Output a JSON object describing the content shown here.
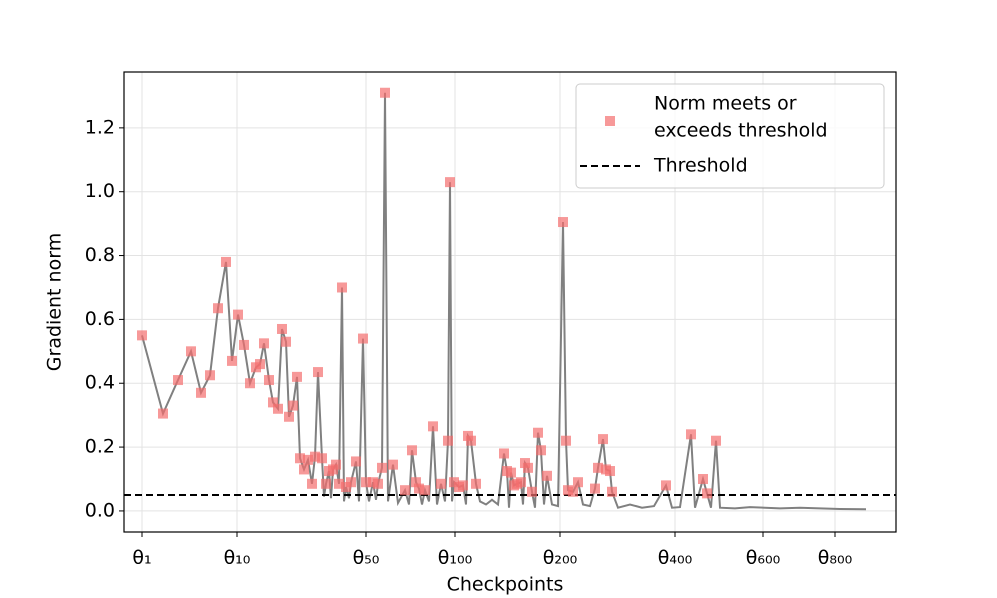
{
  "chart_data": {
    "type": "line",
    "xlabel": "Checkpoints",
    "ylabel": "Gradient norm",
    "xlim": [
      -18,
      754
    ],
    "xticks": [
      {
        "value": 0,
        "label": "θ₁"
      },
      {
        "value": 95,
        "label": "θ₁₀"
      },
      {
        "value": 224,
        "label": "θ₅₀"
      },
      {
        "value": 313,
        "label": "θ₁₀₀"
      },
      {
        "value": 418,
        "label": "θ₂₀₀"
      },
      {
        "value": 533,
        "label": "θ₄₀₀"
      },
      {
        "value": 621,
        "label": "θ₆₀₀"
      },
      {
        "value": 693,
        "label": "θ₈₀₀"
      }
    ],
    "ylim": [
      -0.066,
      1.375
    ],
    "yticks": [
      {
        "value": 0,
        "label": "0.0"
      },
      0.2,
      0.4,
      0.6,
      0.8,
      {
        "value": 1,
        "label": "1.0"
      },
      1.2
    ],
    "grid": true,
    "legend": "upper right",
    "threshold": 0.05,
    "threshold_label": "Threshold",
    "threshold_color": "#000000",
    "marker_label_lines": [
      "Norm meets or",
      "exceeds threshold"
    ],
    "marker_color": "#f46d6d",
    "line_color": "#808080",
    "x": [
      0,
      21,
      36,
      49,
      59,
      68,
      76,
      84,
      90,
      96,
      102,
      108,
      114,
      118,
      122,
      127,
      131,
      136,
      140,
      144,
      147,
      151,
      155,
      158,
      162,
      166,
      170,
      173,
      176,
      180,
      182,
      184,
      187,
      189,
      191,
      194,
      197,
      200,
      202,
      204,
      207,
      209,
      214,
      217,
      221,
      224,
      227,
      231,
      234,
      236,
      240,
      243,
      246,
      251,
      256,
      263,
      267,
      270,
      274,
      277,
      280,
      283,
      287,
      291,
      295,
      299,
      303,
      306,
      308,
      310,
      312,
      317,
      321,
      324,
      326,
      329,
      334,
      338,
      344,
      350,
      356,
      362,
      365,
      367,
      369,
      372,
      375,
      379,
      381,
      383,
      386,
      390,
      393,
      396,
      399,
      402,
      405,
      410,
      416,
      421,
      424,
      426,
      431,
      436,
      441,
      448,
      453,
      456,
      461,
      464,
      468,
      470,
      476,
      488,
      500,
      512,
      524,
      530,
      538,
      549,
      553,
      561,
      565,
      569,
      574,
      578,
      593,
      608,
      623,
      638,
      658,
      678,
      698,
      724
    ],
    "values": [
      0.55,
      0.305,
      0.41,
      0.5,
      0.37,
      0.425,
      0.635,
      0.78,
      0.47,
      0.615,
      0.52,
      0.4,
      0.45,
      0.46,
      0.525,
      0.41,
      0.34,
      0.32,
      0.57,
      0.53,
      0.295,
      0.33,
      0.42,
      0.165,
      0.13,
      0.16,
      0.085,
      0.17,
      0.435,
      0.165,
      0.045,
      0.085,
      0.125,
      0.04,
      0.13,
      0.145,
      0.085,
      0.7,
      0.03,
      0.075,
      0.04,
      0.09,
      0.155,
      0.03,
      0.54,
      0.09,
      0.03,
      0.09,
      0.035,
      0.085,
      0.135,
      1.31,
      0.03,
      0.145,
      0.025,
      0.065,
      0.02,
      0.19,
      0.09,
      0.07,
      0.02,
      0.065,
      0.03,
      0.265,
      0.02,
      0.085,
      0.03,
      0.22,
      1.03,
      0.03,
      0.09,
      0.075,
      0.08,
      0.02,
      0.235,
      0.22,
      0.085,
      0.03,
      0.02,
      0.035,
      0.02,
      0.18,
      0.125,
      0.01,
      0.12,
      0.08,
      0.085,
      0.09,
      0.02,
      0.15,
      0.135,
      0.06,
      0.01,
      0.245,
      0.19,
      0.02,
      0.11,
      0.02,
      0.015,
      0.905,
      0.22,
      0.065,
      0.06,
      0.09,
      0.02,
      0.015,
      0.07,
      0.135,
      0.225,
      0.13,
      0.125,
      0.06,
      0.01,
      0.02,
      0.01,
      0.015,
      0.08,
      0.01,
      0.012,
      0.24,
      0.01,
      0.1,
      0.055,
      0.01,
      0.22,
      0.01,
      0.008,
      0.012,
      0.01,
      0.008,
      0.01,
      0.008,
      0.006,
      0.005
    ]
  }
}
